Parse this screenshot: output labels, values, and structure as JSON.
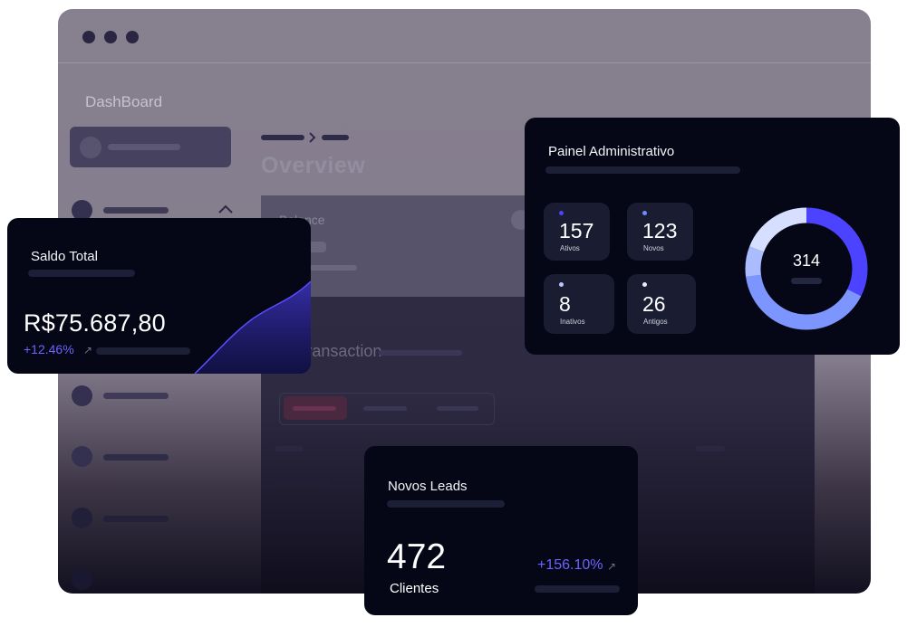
{
  "window": {
    "title": "DashBoard"
  },
  "main": {
    "heading": "Overview",
    "balance_label": "Balance",
    "transaction_label": "Transaction"
  },
  "saldo_card": {
    "title": "Saldo Total",
    "amount": "R$75.687,80",
    "change": "+12.46%",
    "change_icon": "arrow-up-right-icon"
  },
  "painel_card": {
    "title": "Painel Administrativo",
    "stats": [
      {
        "value": "157",
        "label": "Ativos",
        "dot_color": "#4b43ff"
      },
      {
        "value": "123",
        "label": "Novos",
        "dot_color": "#6f8cff"
      },
      {
        "value": "8",
        "label": "Inativos",
        "dot_color": "#b9c6ff"
      },
      {
        "value": "26",
        "label": "Antigos",
        "dot_color": "#e8ecff"
      }
    ],
    "total": "314",
    "donut_colors": [
      "#4b43ff",
      "#7d96ff",
      "#aabbff",
      "#d6dfff"
    ]
  },
  "leads_card": {
    "title": "Novos Leads",
    "value": "472",
    "unit": "Clientes",
    "change": "+156.10%",
    "change_icon": "arrow-up-right-icon"
  },
  "colors": {
    "accent": "#6d63ff",
    "card_bg": "#050717",
    "window_bg": "#857e8e"
  }
}
